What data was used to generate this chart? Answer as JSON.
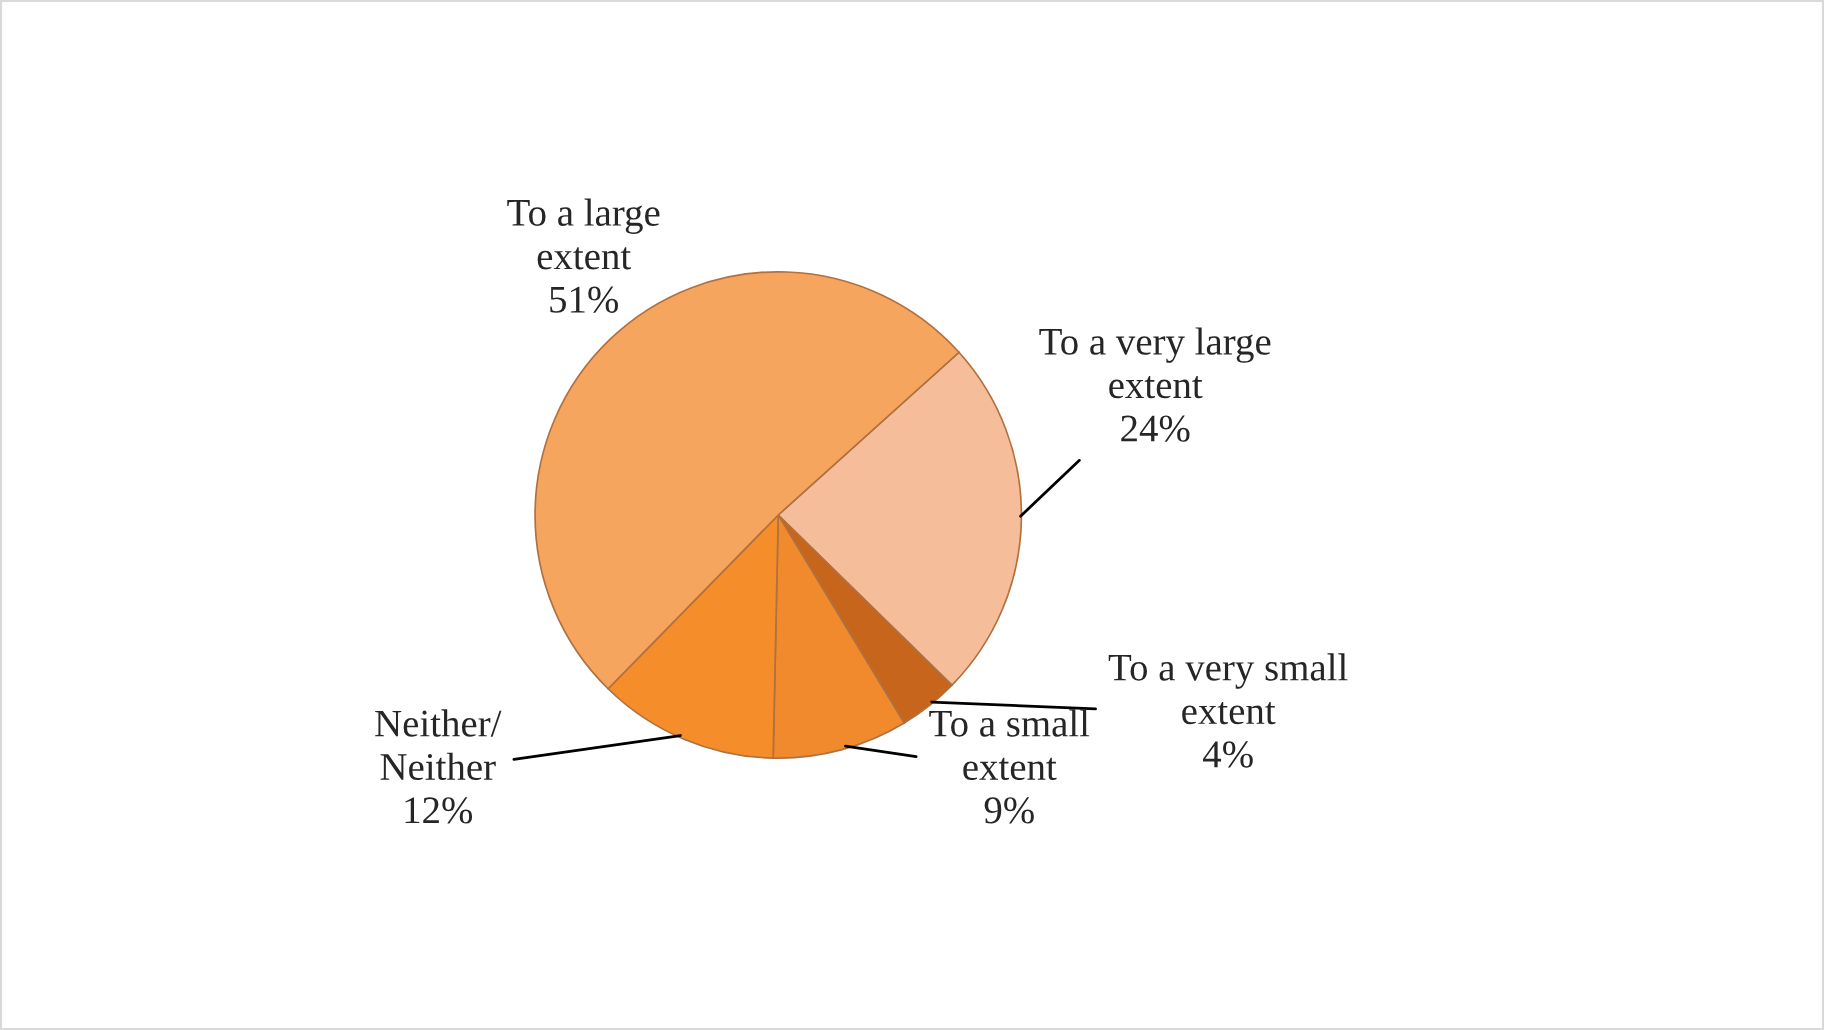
{
  "chart_data": {
    "type": "pie",
    "categories": [
      "To a very large\nextent",
      "To a very small\nextent",
      "To a small\nextent",
      "Neither/\nNeither",
      "To a large\nextent"
    ],
    "values": [
      24,
      4,
      9,
      12,
      51
    ],
    "value_labels": [
      "24%",
      "4%",
      "9%",
      "12%",
      "51%"
    ],
    "colors": [
      "#f6bd9b",
      "#c8651c",
      "#f08a2c",
      "#f48d2a",
      "#f6a55e"
    ],
    "legend": false
  }
}
